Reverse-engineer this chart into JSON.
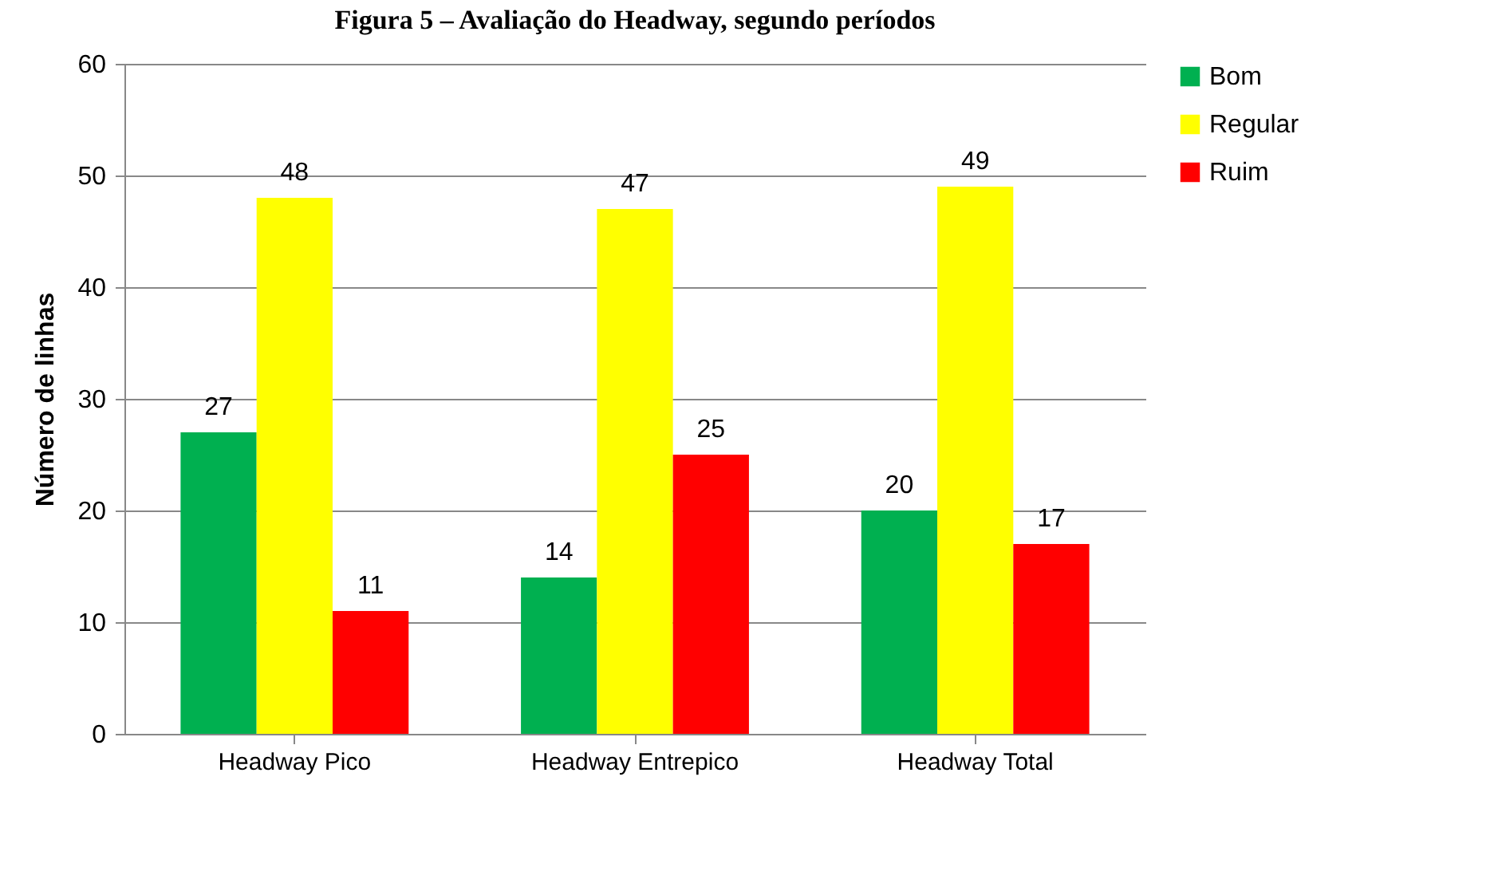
{
  "chart_data": {
    "type": "bar",
    "title": "Figura 5 – Avaliação do Headway, segundo períodos",
    "ylabel": "Número de linhas",
    "categories": [
      "Headway Pico",
      "Headway Entrepico",
      "Headway Total"
    ],
    "series": [
      {
        "name": "Bom",
        "color": "#00b050",
        "values": [
          27,
          14,
          20
        ]
      },
      {
        "name": "Regular",
        "color": "#ffff00",
        "values": [
          48,
          47,
          49
        ]
      },
      {
        "name": "Ruim",
        "color": "#ff0000",
        "values": [
          11,
          25,
          17
        ]
      }
    ],
    "ylim": [
      0,
      60
    ],
    "yticks": [
      0,
      10,
      20,
      30,
      40,
      50,
      60
    ],
    "grid": "y",
    "legend": "right",
    "data_labels": true
  }
}
